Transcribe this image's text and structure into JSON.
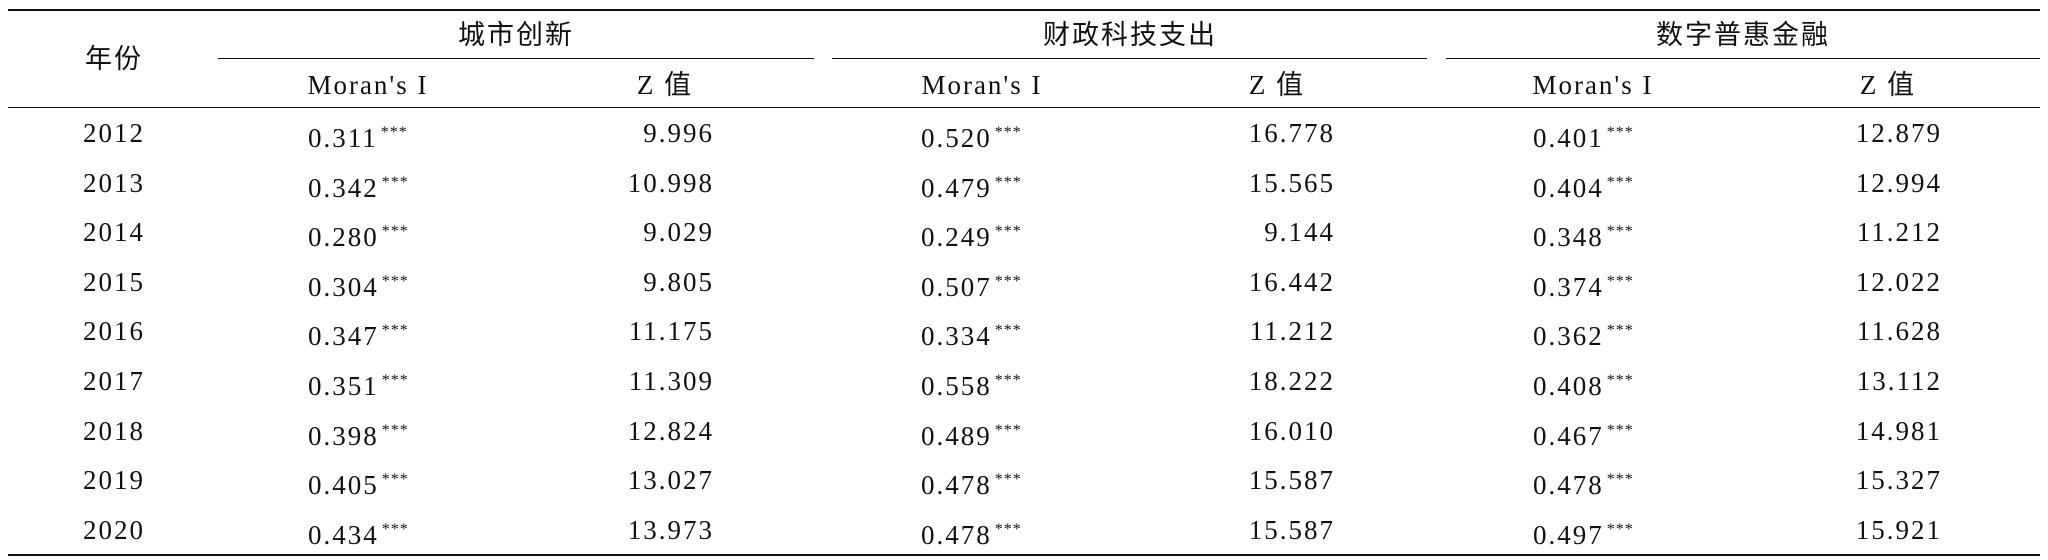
{
  "table": {
    "header": {
      "year": "年份",
      "groups": [
        "城市创新",
        "财政科技支出",
        "数字普惠金融"
      ],
      "subheaders": [
        "Moran's I",
        "Z 值",
        "Moran's I",
        "Z 值",
        "Moran's I",
        "Z 值"
      ]
    },
    "rows": [
      {
        "year": "2012",
        "cells": [
          {
            "moran": "0.311",
            "sig": "***",
            "z": "9.996"
          },
          {
            "moran": "0.520",
            "sig": "***",
            "z": "16.778"
          },
          {
            "moran": "0.401",
            "sig": "***",
            "z": "12.879"
          }
        ]
      },
      {
        "year": "2013",
        "cells": [
          {
            "moran": "0.342",
            "sig": "***",
            "z": "10.998"
          },
          {
            "moran": "0.479",
            "sig": "***",
            "z": "15.565"
          },
          {
            "moran": "0.404",
            "sig": "***",
            "z": "12.994"
          }
        ]
      },
      {
        "year": "2014",
        "cells": [
          {
            "moran": "0.280",
            "sig": "***",
            "z": "9.029"
          },
          {
            "moran": "0.249",
            "sig": "***",
            "z": "9.144"
          },
          {
            "moran": "0.348",
            "sig": "***",
            "z": "11.212"
          }
        ]
      },
      {
        "year": "2015",
        "cells": [
          {
            "moran": "0.304",
            "sig": "***",
            "z": "9.805"
          },
          {
            "moran": "0.507",
            "sig": "***",
            "z": "16.442"
          },
          {
            "moran": "0.374",
            "sig": "***",
            "z": "12.022"
          }
        ]
      },
      {
        "year": "2016",
        "cells": [
          {
            "moran": "0.347",
            "sig": "***",
            "z": "11.175"
          },
          {
            "moran": "0.334",
            "sig": "***",
            "z": "11.212"
          },
          {
            "moran": "0.362",
            "sig": "***",
            "z": "11.628"
          }
        ]
      },
      {
        "year": "2017",
        "cells": [
          {
            "moran": "0.351",
            "sig": "***",
            "z": "11.309"
          },
          {
            "moran": "0.558",
            "sig": "***",
            "z": "18.222"
          },
          {
            "moran": "0.408",
            "sig": "***",
            "z": "13.112"
          }
        ]
      },
      {
        "year": "2018",
        "cells": [
          {
            "moran": "0.398",
            "sig": "***",
            "z": "12.824"
          },
          {
            "moran": "0.489",
            "sig": "***",
            "z": "16.010"
          },
          {
            "moran": "0.467",
            "sig": "***",
            "z": "14.981"
          }
        ]
      },
      {
        "year": "2019",
        "cells": [
          {
            "moran": "0.405",
            "sig": "***",
            "z": "13.027"
          },
          {
            "moran": "0.478",
            "sig": "***",
            "z": "15.587"
          },
          {
            "moran": "0.478",
            "sig": "***",
            "z": "15.327"
          }
        ]
      },
      {
        "year": "2020",
        "cells": [
          {
            "moran": "0.434",
            "sig": "***",
            "z": "13.973"
          },
          {
            "moran": "0.478",
            "sig": "***",
            "z": "15.587"
          },
          {
            "moran": "0.497",
            "sig": "***",
            "z": "15.921"
          }
        ]
      }
    ]
  }
}
